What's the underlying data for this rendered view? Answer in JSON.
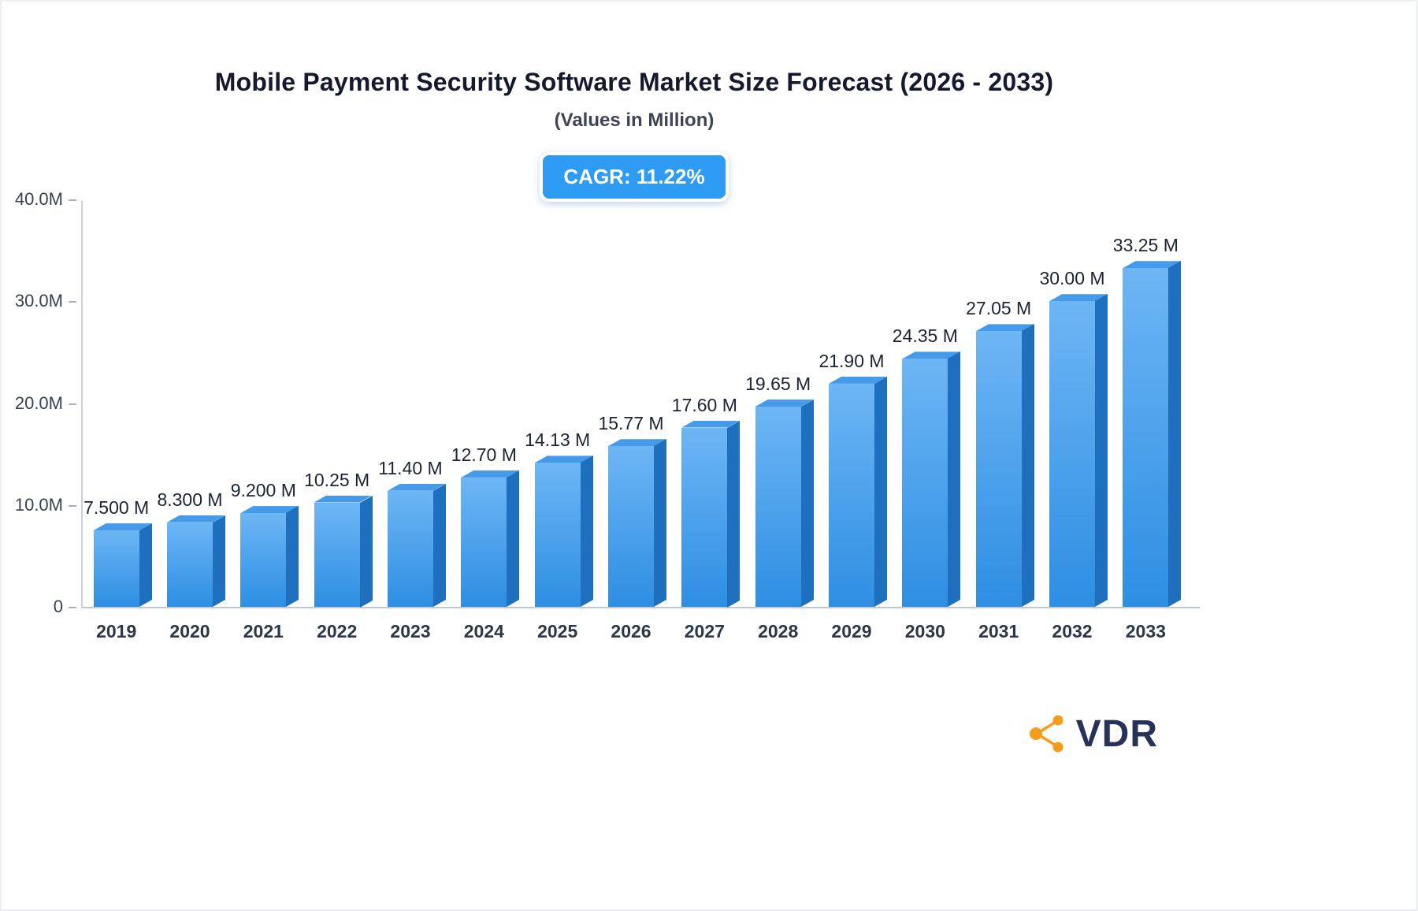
{
  "header": {
    "title": "Mobile Payment Security Software Market Size Forecast (2026 - 2033)",
    "subtitle": "(Values in Million)",
    "cagr_badge": "CAGR: 11.22%"
  },
  "logo": {
    "text": "VDR"
  },
  "colors": {
    "accent": "#2e9bf4",
    "bar_front_top": "#6db6f5",
    "bar_front_bottom": "#2e8ee2",
    "bar_side": "#1e6fbe",
    "bar_top": "#459ae9",
    "logo_orange": "#f49d1d",
    "logo_navy": "#27325a",
    "text_dark": "#1c2333"
  },
  "chart_data": {
    "type": "bar",
    "title": "Mobile Payment Security Software Market Size Forecast (2026 - 2033)",
    "subtitle": "(Values in Million)",
    "xlabel": "",
    "ylabel": "",
    "categories": [
      "2019",
      "2020",
      "2021",
      "2022",
      "2023",
      "2024",
      "2025",
      "2026",
      "2027",
      "2028",
      "2029",
      "2030",
      "2031",
      "2032",
      "2033"
    ],
    "values": [
      7.5,
      8.3,
      9.2,
      10.25,
      11.4,
      12.7,
      14.13,
      15.77,
      17.6,
      19.65,
      21.9,
      24.35,
      27.05,
      30.0,
      33.25
    ],
    "value_labels": [
      "7.500 M",
      "8.300 M",
      "9.200 M",
      "10.25 M",
      "11.40 M",
      "12.70 M",
      "14.13 M",
      "15.77 M",
      "17.60 M",
      "19.65 M",
      "21.90 M",
      "24.35 M",
      "27.05 M",
      "30.00 M",
      "33.25 M"
    ],
    "unit": "Million",
    "ylim": [
      0,
      40
    ],
    "y_ticks": [
      "0",
      "10.0M",
      "20.0M",
      "30.0M",
      "40.0M"
    ],
    "grid": false,
    "legend": false,
    "annotations": [
      "CAGR: 11.22%"
    ]
  }
}
